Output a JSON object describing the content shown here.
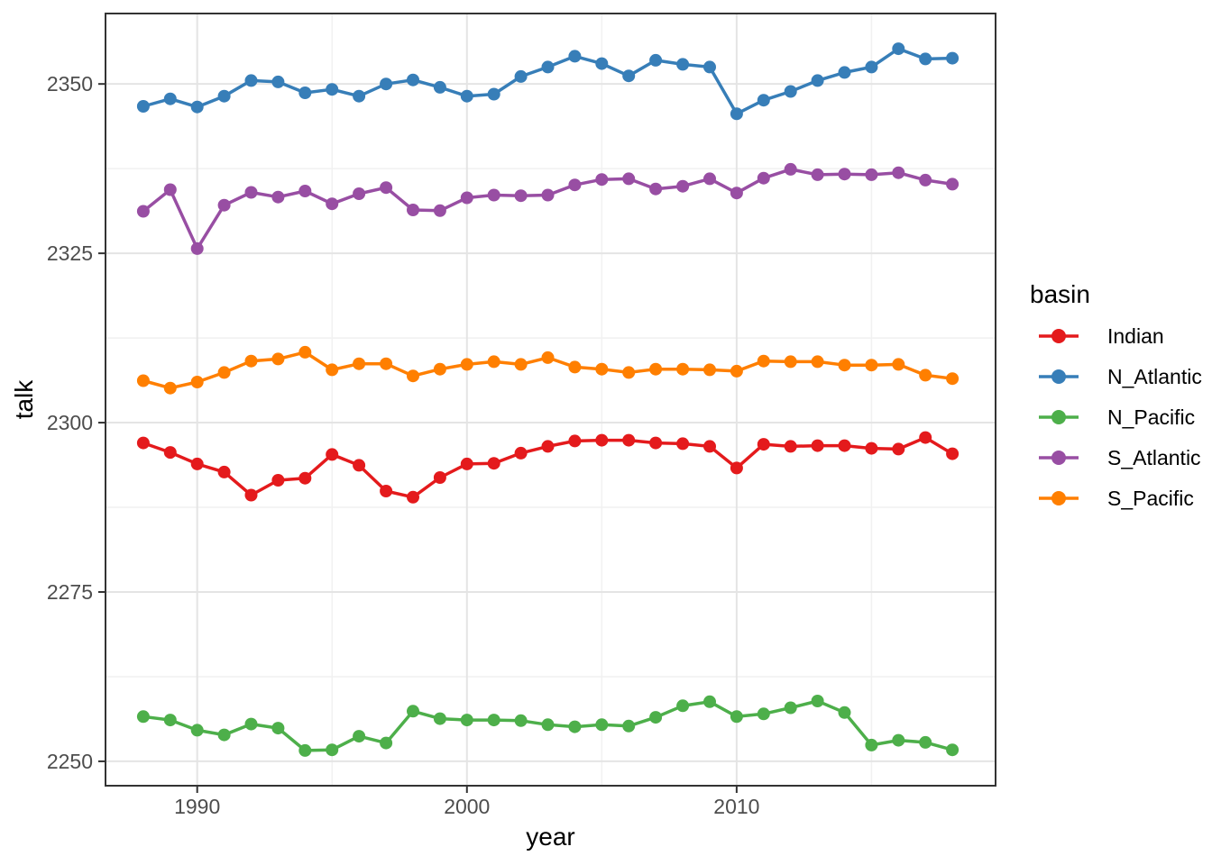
{
  "figure": {
    "background_color": "#FFFFFF",
    "panel_background": "#FFFFFF",
    "panel_border_color": "#333333",
    "grid_major_color": "#E4E4E4",
    "grid_minor_color": "#F1F1F1",
    "tick_color": "#333333",
    "tick_label_color": "#4D4D4D"
  },
  "chart_data": {
    "type": "line",
    "title": "",
    "xlabel": "year",
    "ylabel": "talk",
    "grid": true,
    "legend_position": "right",
    "marker": "circle",
    "xlim": [
      1986.6,
      2019.6
    ],
    "ylim": [
      2246.4,
      2360.4
    ],
    "x_ticks_major": [
      1990,
      2000,
      2010
    ],
    "x_ticks_minor": [
      1995,
      2005,
      2015
    ],
    "y_ticks_major": [
      2250,
      2275,
      2300,
      2325,
      2350
    ],
    "y_ticks_minor": [
      2262.5,
      2287.5,
      2312.5,
      2337.5
    ],
    "x": [
      1988,
      1989,
      1990,
      1991,
      1992,
      1993,
      1994,
      1995,
      1996,
      1997,
      1998,
      1999,
      2000,
      2001,
      2002,
      2003,
      2004,
      2005,
      2006,
      2007,
      2008,
      2009,
      2010,
      2011,
      2012,
      2013,
      2014,
      2015,
      2016,
      2017,
      2018
    ],
    "series": [
      {
        "name": "Indian",
        "color": "#E41A1C",
        "values": [
          2297.0,
          2295.6,
          2293.9,
          2292.7,
          2289.3,
          2291.5,
          2291.8,
          2295.3,
          2293.7,
          2289.9,
          2289.0,
          2291.9,
          2293.9,
          2294.0,
          2295.5,
          2296.5,
          2297.3,
          2297.4,
          2297.4,
          2297.0,
          2296.9,
          2296.5,
          2293.3,
          2296.8,
          2296.5,
          2296.6,
          2296.6,
          2296.2,
          2296.1,
          2297.8,
          2295.4
        ]
      },
      {
        "name": "N_Atlantic",
        "color": "#377EB8",
        "values": [
          2346.7,
          2347.8,
          2346.6,
          2348.2,
          2350.5,
          2350.3,
          2348.7,
          2349.2,
          2348.2,
          2350.0,
          2350.6,
          2349.5,
          2348.2,
          2348.5,
          2351.1,
          2352.5,
          2354.1,
          2353.0,
          2351.2,
          2353.5,
          2352.9,
          2352.5,
          2345.6,
          2347.6,
          2348.9,
          2350.5,
          2351.7,
          2352.5,
          2355.2,
          2353.7,
          2353.8
        ]
      },
      {
        "name": "N_Pacific",
        "color": "#4DAF4A",
        "values": [
          2256.6,
          2256.1,
          2254.6,
          2253.9,
          2255.5,
          2254.9,
          2251.6,
          2251.7,
          2253.7,
          2252.7,
          2257.4,
          2256.3,
          2256.1,
          2256.1,
          2256.0,
          2255.4,
          2255.1,
          2255.4,
          2255.2,
          2256.5,
          2258.2,
          2258.8,
          2256.6,
          2257.0,
          2257.9,
          2258.9,
          2257.2,
          2252.4,
          2253.1,
          2252.8,
          2251.7
        ]
      },
      {
        "name": "S_Atlantic",
        "color": "#984EA3",
        "values": [
          2331.2,
          2334.4,
          2325.7,
          2332.1,
          2334.0,
          2333.3,
          2334.2,
          2332.3,
          2333.8,
          2334.7,
          2331.4,
          2331.3,
          2333.2,
          2333.6,
          2333.5,
          2333.6,
          2335.1,
          2335.9,
          2336.0,
          2334.5,
          2334.9,
          2336.0,
          2333.9,
          2336.1,
          2337.4,
          2336.6,
          2336.7,
          2336.6,
          2336.9,
          2335.8,
          2335.2
        ]
      },
      {
        "name": "S_Pacific",
        "color": "#FF7F00",
        "values": [
          2306.2,
          2305.1,
          2306.0,
          2307.4,
          2309.1,
          2309.4,
          2310.4,
          2307.8,
          2308.7,
          2308.7,
          2306.9,
          2307.9,
          2308.6,
          2309.0,
          2308.6,
          2309.6,
          2308.2,
          2307.9,
          2307.4,
          2307.9,
          2307.9,
          2307.8,
          2307.6,
          2309.1,
          2309.0,
          2309.0,
          2308.5,
          2308.5,
          2308.6,
          2307.0,
          2306.5
        ]
      }
    ]
  },
  "legend": {
    "title": "basin",
    "items": [
      {
        "label": "Indian",
        "color": "#E41A1C"
      },
      {
        "label": "N_Atlantic",
        "color": "#377EB8"
      },
      {
        "label": "N_Pacific",
        "color": "#4DAF4A"
      },
      {
        "label": "S_Atlantic",
        "color": "#984EA3"
      },
      {
        "label": "S_Pacific",
        "color": "#FF7F00"
      }
    ]
  }
}
